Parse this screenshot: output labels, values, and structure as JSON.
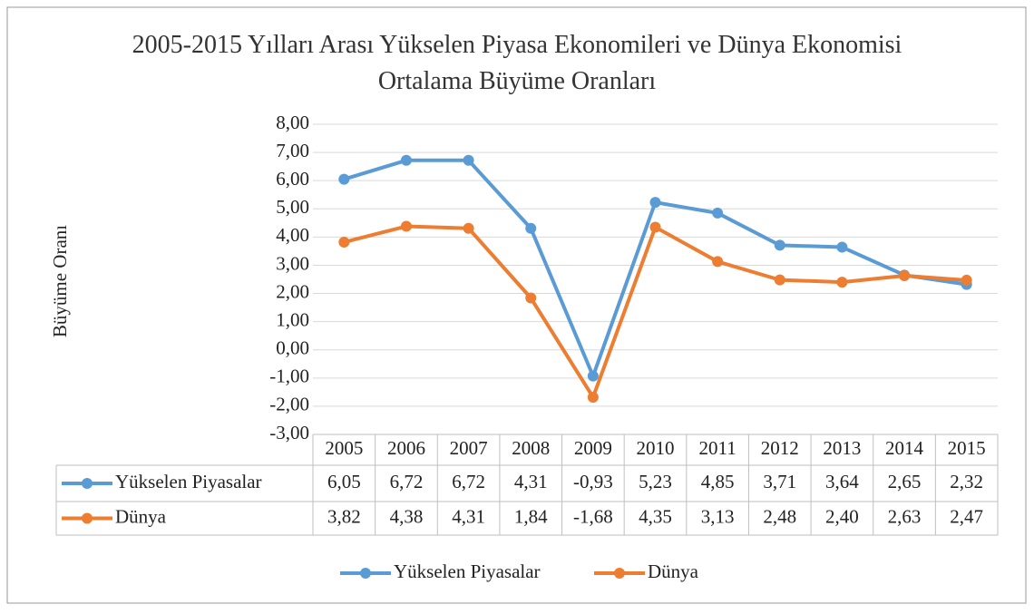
{
  "chart_data": {
    "type": "line",
    "title": "2005-2015 Yılları Arası Yükselen Piyasa Ekonomileri ve Dünya Ekonomisi Ortalama Büyüme Oranları",
    "y_label": "Büyüme Oranı",
    "categories": [
      "2005",
      "2006",
      "2007",
      "2008",
      "2009",
      "2010",
      "2011",
      "2012",
      "2013",
      "2014",
      "2015"
    ],
    "series": [
      {
        "name": "Yükselen Piyasalar",
        "color": "#5b9bd5",
        "values": [
          6.05,
          6.72,
          6.72,
          4.31,
          -0.93,
          5.23,
          4.85,
          3.71,
          3.64,
          2.65,
          2.32
        ],
        "value_labels": [
          "6,05",
          "6,72",
          "6,72",
          "4,31",
          "-0,93",
          "5,23",
          "4,85",
          "3,71",
          "3,64",
          "2,65",
          "2,32"
        ]
      },
      {
        "name": "Dünya",
        "color": "#ed7d31",
        "values": [
          3.82,
          4.38,
          4.31,
          1.84,
          -1.68,
          4.35,
          3.13,
          2.48,
          2.4,
          2.63,
          2.47
        ],
        "value_labels": [
          "3,82",
          "4,38",
          "4,31",
          "1,84",
          "-1,68",
          "4,35",
          "3,13",
          "2,48",
          "2,40",
          "2,63",
          "2,47"
        ]
      }
    ],
    "ylim": [
      -3,
      8
    ],
    "yticks": [
      {
        "value": -3,
        "label": "-3,00"
      },
      {
        "value": -2,
        "label": "-2,00"
      },
      {
        "value": -1,
        "label": "-1,00"
      },
      {
        "value": 0,
        "label": "0,00"
      },
      {
        "value": 1,
        "label": "1,00"
      },
      {
        "value": 2,
        "label": "2,00"
      },
      {
        "value": 3,
        "label": "3,00"
      },
      {
        "value": 4,
        "label": "4,00"
      },
      {
        "value": 5,
        "label": "5,00"
      },
      {
        "value": 6,
        "label": "6,00"
      },
      {
        "value": 7,
        "label": "7,00"
      },
      {
        "value": 8,
        "label": "8,00"
      }
    ],
    "grid": true,
    "legend": "bottom",
    "data_table": true
  }
}
